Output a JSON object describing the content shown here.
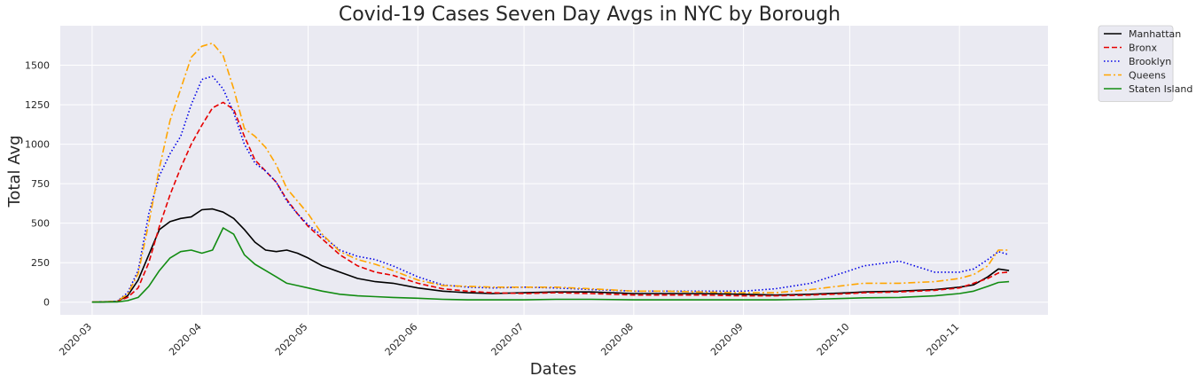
{
  "chart_data": {
    "type": "line",
    "title": "Covid-19 Cases Seven Day Avgs in NYC by Borough",
    "xlabel": "Dates",
    "ylabel": "Total Avg",
    "ylim": [
      -80,
      1750
    ],
    "xlim": [
      "2020-02-21",
      "2020-11-26"
    ],
    "yticks": [
      0,
      250,
      500,
      750,
      1000,
      1250,
      1500
    ],
    "xticks": [
      "2020-03",
      "2020-04",
      "2020-05",
      "2020-06",
      "2020-07",
      "2020-08",
      "2020-09",
      "2020-10",
      "2020-11"
    ],
    "grid": true,
    "legend_position": "outside-top-right",
    "background": "#eaeaf2",
    "x": [
      "2020-03-01",
      "2020-03-08",
      "2020-03-11",
      "2020-03-14",
      "2020-03-17",
      "2020-03-20",
      "2020-03-23",
      "2020-03-26",
      "2020-03-29",
      "2020-04-01",
      "2020-04-04",
      "2020-04-07",
      "2020-04-10",
      "2020-04-13",
      "2020-04-16",
      "2020-04-19",
      "2020-04-22",
      "2020-04-25",
      "2020-04-28",
      "2020-05-01",
      "2020-05-05",
      "2020-05-10",
      "2020-05-15",
      "2020-05-20",
      "2020-05-25",
      "2020-06-01",
      "2020-06-08",
      "2020-06-15",
      "2020-06-22",
      "2020-07-01",
      "2020-07-10",
      "2020-07-20",
      "2020-08-01",
      "2020-08-10",
      "2020-08-20",
      "2020-09-01",
      "2020-09-10",
      "2020-09-20",
      "2020-10-01",
      "2020-10-05",
      "2020-10-15",
      "2020-10-25",
      "2020-11-01",
      "2020-11-05",
      "2020-11-09",
      "2020-11-12",
      "2020-11-15"
    ],
    "series": [
      {
        "name": "Manhattan",
        "color": "#000000",
        "style": "solid",
        "values": [
          0,
          5,
          40,
          140,
          300,
          460,
          510,
          530,
          540,
          585,
          590,
          570,
          530,
          460,
          380,
          330,
          320,
          330,
          310,
          280,
          230,
          190,
          150,
          130,
          120,
          90,
          70,
          60,
          55,
          60,
          65,
          65,
          55,
          55,
          55,
          50,
          45,
          50,
          60,
          65,
          70,
          80,
          95,
          110,
          160,
          210,
          200
        ]
      },
      {
        "name": "Bronx",
        "color": "#e60000",
        "style": "dashed",
        "values": [
          0,
          5,
          30,
          90,
          250,
          480,
          680,
          850,
          1000,
          1120,
          1230,
          1265,
          1220,
          1050,
          900,
          830,
          760,
          650,
          560,
          480,
          400,
          300,
          230,
          190,
          170,
          120,
          85,
          70,
          60,
          55,
          60,
          55,
          45,
          45,
          45,
          40,
          40,
          45,
          55,
          60,
          65,
          75,
          90,
          120,
          150,
          185,
          190
        ]
      },
      {
        "name": "Brooklyn",
        "color": "#0000e6",
        "style": "dotted",
        "values": [
          0,
          5,
          60,
          200,
          560,
          800,
          940,
          1050,
          1250,
          1410,
          1430,
          1350,
          1200,
          1000,
          880,
          830,
          760,
          640,
          560,
          490,
          420,
          330,
          290,
          270,
          230,
          160,
          110,
          95,
          90,
          95,
          90,
          80,
          70,
          70,
          70,
          70,
          85,
          120,
          200,
          230,
          260,
          190,
          190,
          210,
          270,
          320,
          300
        ]
      },
      {
        "name": "Queens",
        "color": "#ffa500",
        "style": "dashdot",
        "values": [
          0,
          5,
          50,
          180,
          500,
          850,
          1150,
          1350,
          1550,
          1620,
          1640,
          1560,
          1350,
          1100,
          1050,
          980,
          870,
          720,
          640,
          560,
          430,
          320,
          270,
          240,
          200,
          140,
          105,
          100,
          95,
          95,
          95,
          85,
          70,
          70,
          65,
          60,
          60,
          80,
          110,
          120,
          120,
          130,
          150,
          175,
          230,
          330,
          330
        ]
      },
      {
        "name": "Staten Island",
        "color": "#128c12",
        "style": "solid",
        "values": [
          0,
          2,
          10,
          30,
          100,
          200,
          280,
          320,
          330,
          310,
          330,
          470,
          430,
          300,
          240,
          200,
          160,
          120,
          105,
          90,
          70,
          50,
          40,
          35,
          30,
          25,
          18,
          15,
          15,
          15,
          18,
          18,
          15,
          15,
          15,
          15,
          15,
          18,
          25,
          28,
          30,
          40,
          55,
          70,
          100,
          125,
          130
        ]
      }
    ]
  }
}
